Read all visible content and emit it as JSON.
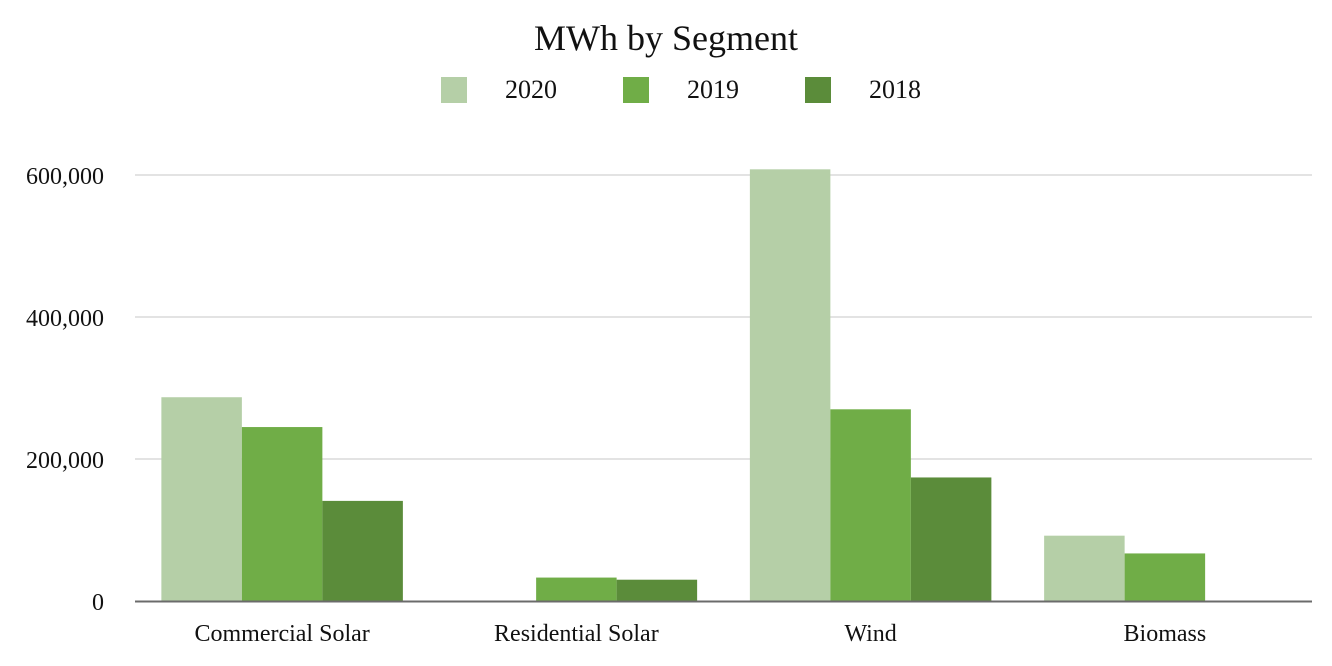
{
  "chart_data": {
    "type": "bar",
    "title": "MWh by Segment",
    "categories": [
      "Commercial Solar",
      "Residential Solar",
      "Wind",
      "Biomass"
    ],
    "series": [
      {
        "name": "2020",
        "color": "#b5cfa7",
        "values": [
          287000,
          0,
          608000,
          92000
        ]
      },
      {
        "name": "2019",
        "color": "#70ad47",
        "values": [
          245000,
          33000,
          270000,
          67000
        ]
      },
      {
        "name": "2018",
        "color": "#5b8c3a",
        "values": [
          141000,
          30000,
          174000,
          0
        ]
      }
    ],
    "yticks": [
      0,
      200000,
      400000,
      600000
    ],
    "ytick_labels": [
      "0",
      "200,000",
      "400,000",
      "600,000"
    ],
    "ylim": [
      0,
      600000
    ],
    "xlabel": "",
    "ylabel": "",
    "grid": true,
    "legend_position": "top-center"
  }
}
